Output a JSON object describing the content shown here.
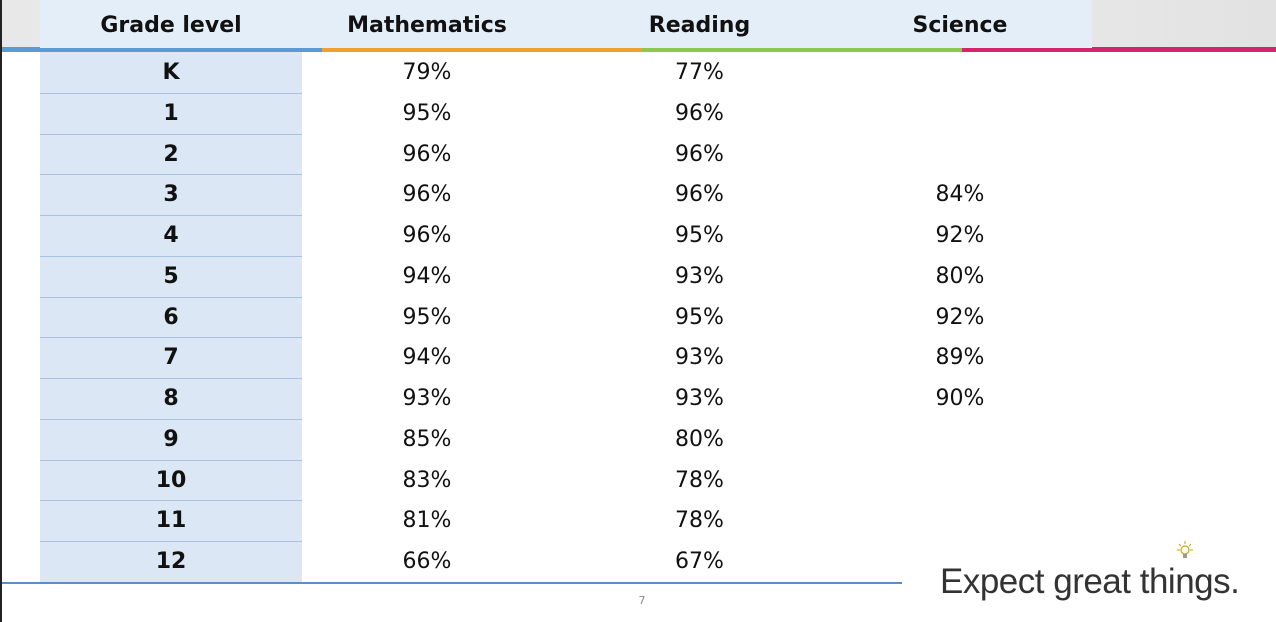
{
  "table": {
    "header": [
      "Grade level",
      "Mathematics",
      "Reading",
      "Science"
    ],
    "rows": [
      [
        "K",
        "79%",
        "77%",
        null
      ],
      [
        "1",
        "95%",
        "96%",
        null
      ],
      [
        "2",
        "96%",
        "96%",
        null
      ],
      [
        "3",
        "96%",
        "96%",
        "84%"
      ],
      [
        "4",
        "96%",
        "95%",
        "92%"
      ],
      [
        "5",
        "94%",
        "93%",
        "80%"
      ],
      [
        "6",
        "95%",
        "95%",
        "92%"
      ],
      [
        "7",
        "94%",
        "93%",
        "89%"
      ],
      [
        "8",
        "93%",
        "93%",
        "90%"
      ],
      [
        "9",
        "85%",
        "80%",
        null
      ],
      [
        "10",
        "83%",
        "78%",
        null
      ],
      [
        "11",
        "81%",
        "78%",
        null
      ],
      [
        "12",
        "66%",
        "67%",
        null
      ]
    ]
  },
  "footer": {
    "page_number": "7",
    "tagline": "Expect great things."
  }
}
